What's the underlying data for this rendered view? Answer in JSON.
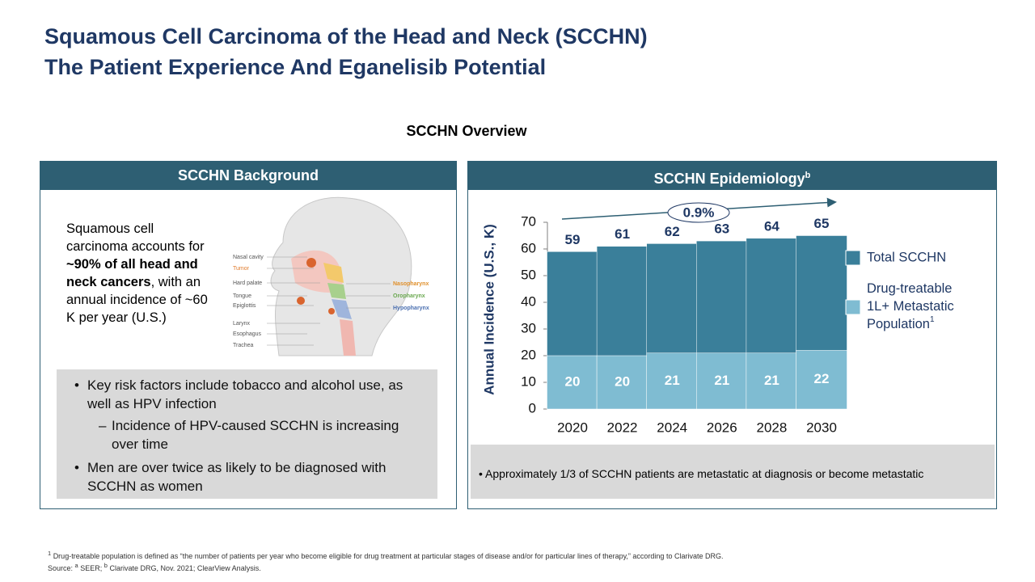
{
  "header": {
    "title_line1": "Squamous Cell Carcinoma of the Head and Neck (SCCHN)",
    "title_line2": "The Patient Experience And Eganelisib Potential",
    "section_title": "SCCHN Overview"
  },
  "left_panel": {
    "heading": "SCCHN Background",
    "intro": [
      {
        "text": "Squamous cell carcinoma accounts for ",
        "bold": false
      },
      {
        "text": "~90% of all head and neck cancers",
        "bold": true
      },
      {
        "text": ", with an annual incidence of ~60 K per year (U.S.)",
        "bold": false
      }
    ],
    "diagram_labels": {
      "left": [
        {
          "label": "Nasal cavity",
          "color": "#555555"
        },
        {
          "label": "Tumor",
          "color": "#e07b2c"
        },
        {
          "label": "Hard palate",
          "color": "#555555"
        },
        {
          "label": "Tongue",
          "color": "#555555"
        },
        {
          "label": "Epiglottis",
          "color": "#555555"
        },
        {
          "label": "Larynx",
          "color": "#555555"
        },
        {
          "label": "Esophagus",
          "color": "#555555"
        },
        {
          "label": "Trachea",
          "color": "#555555"
        }
      ],
      "right": [
        {
          "label": "Nasopharynx",
          "color": "#e0902c"
        },
        {
          "label": "Oropharynx",
          "color": "#6aa84f"
        },
        {
          "label": "Hypopharynx",
          "color": "#4a6fb0"
        }
      ]
    },
    "bullets": [
      {
        "text": "Key risk factors include tobacco and alcohol use, as well as HPV infection",
        "level": 1
      },
      {
        "text": "Incidence of HPV-caused SCCHN is increasing over time",
        "level": 2
      },
      {
        "text": "Men are over twice as likely to be diagnosed with SCCHN as women",
        "level": 1
      }
    ]
  },
  "right_panel": {
    "heading": "SCCHN Epidemiology",
    "heading_sup": "b",
    "note": "Approximately 1/3 of SCCHN patients are metastatic at diagnosis or become metastatic"
  },
  "chart_data": {
    "type": "bar",
    "mode": "overlay",
    "ylabel": "Annual Incidence (U.S., K)",
    "categories": [
      "2020",
      "2022",
      "2024",
      "2026",
      "2028",
      "2030"
    ],
    "series": [
      {
        "name": "Total SCCHN",
        "color": "#3a7f9a",
        "values": [
          59,
          61,
          62,
          63,
          64,
          65
        ]
      },
      {
        "name": "Drug-treatable 1L+ Metastatic Population",
        "footnote_mark": "1",
        "color": "#7fbcd2",
        "values": [
          20,
          20,
          21,
          21,
          21,
          22
        ]
      }
    ],
    "ylim": [
      0,
      70
    ],
    "yticks": [
      0,
      10,
      20,
      30,
      40,
      50,
      60,
      70
    ],
    "annotation": "0.9%"
  },
  "footnotes": {
    "line1_mark": "1",
    "line1": "Drug-treatable population is defined as “the number of patients per year who become eligible for drug treatment at particular stages of disease and/or for particular lines of therapy,” according to Clarivate DRG.",
    "source_label": "Source:",
    "source_a_mark": "a",
    "source_a": "SEER;",
    "source_b_mark": "b",
    "source_b": "Clarivate DRG, Nov. 2021; ClearView Analysis."
  }
}
